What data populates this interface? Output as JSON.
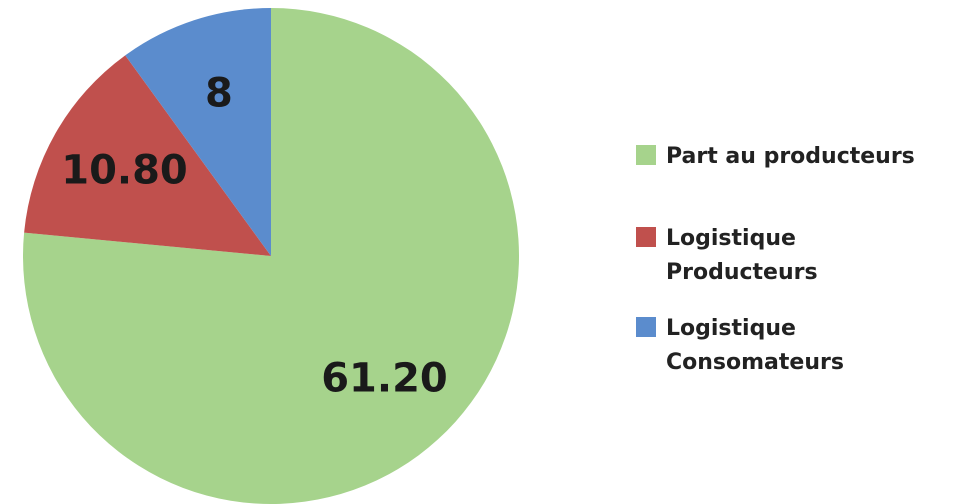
{
  "chart_data": {
    "type": "pie",
    "categories": [
      "Part au producteurs",
      "Logistique\nProducteurs",
      "Logistique\nConsomateurs"
    ],
    "values": [
      61.2,
      10.8,
      8
    ],
    "value_labels": [
      "61.20",
      "10.80",
      "8"
    ],
    "colors": [
      "#a6d38c",
      "#c0504d",
      "#5b8ccd"
    ],
    "legend": "right"
  }
}
